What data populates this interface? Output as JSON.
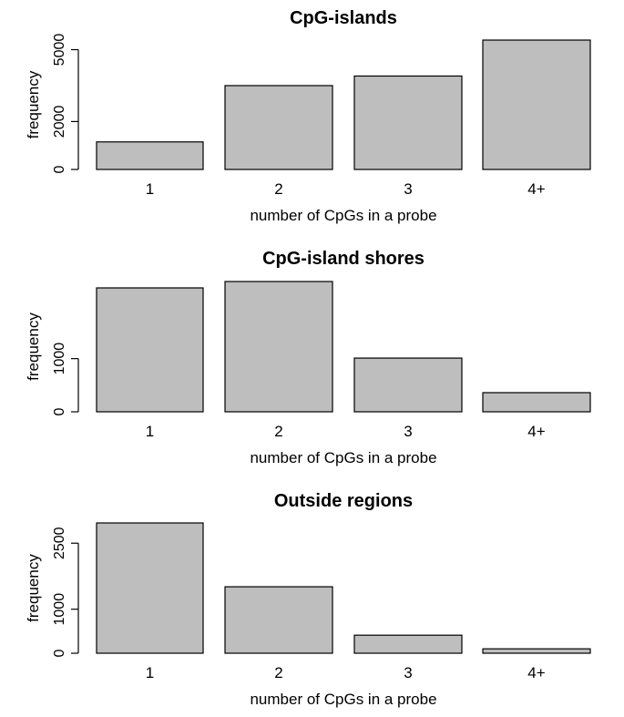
{
  "chart_data": [
    {
      "type": "bar",
      "title": "CpG-islands",
      "xlabel": "number of CpGs in a probe",
      "ylabel": "frequency",
      "categories": [
        "1",
        "2",
        "3",
        "4+"
      ],
      "values": [
        1150,
        3500,
        3900,
        5400
      ],
      "ylim": [
        0,
        5400
      ],
      "yticks": [
        0,
        2000,
        5000
      ],
      "grid": false,
      "bar_color": "#bebebe"
    },
    {
      "type": "bar",
      "title": "CpG-island shores",
      "xlabel": "number of CpGs in a probe",
      "ylabel": "frequency",
      "categories": [
        "1",
        "2",
        "3",
        "4+"
      ],
      "values": [
        2330,
        2450,
        1010,
        360
      ],
      "ylim": [
        0,
        2450
      ],
      "yticks": [
        0,
        1000
      ],
      "grid": false,
      "bar_color": "#bebebe"
    },
    {
      "type": "bar",
      "title": "Outside regions",
      "xlabel": "number of CpGs in a probe",
      "ylabel": "frequency",
      "categories": [
        "1",
        "2",
        "3",
        "4+"
      ],
      "values": [
        2960,
        1510,
        410,
        100
      ],
      "ylim": [
        0,
        2960
      ],
      "yticks": [
        0,
        1000,
        2500
      ],
      "grid": false,
      "bar_color": "#bebebe"
    }
  ]
}
